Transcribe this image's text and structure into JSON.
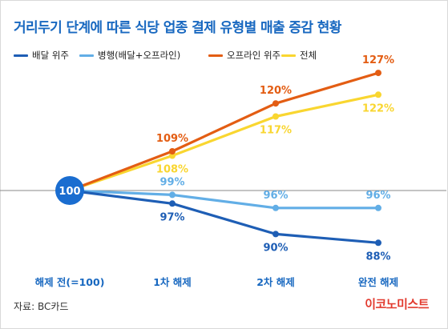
{
  "title": "거리두기 단계에 따른 식당 업종 결제 유형별 매출 증감 현황",
  "source": "자료: BC카드",
  "brand": "이코노미스트",
  "colors": {
    "title": "#1868c0",
    "baseline_marker": "#1a6dd0"
  },
  "chart_data": {
    "type": "line",
    "categories": [
      "해제 전(=100)",
      "1차 해제",
      "2차 해제",
      "완전 해제"
    ],
    "baseline_label": "100",
    "ylim": [
      80,
      130
    ],
    "grid": false,
    "legend_position": "top-left",
    "series": [
      {
        "name": "배달 위주",
        "color": "#1e5eb5",
        "values": [
          100,
          97,
          90,
          88
        ],
        "labels": [
          "",
          "97%",
          "90%",
          "88%"
        ],
        "label_side": "below"
      },
      {
        "name": "병행(배달+오프라인)",
        "color": "#62aee6",
        "values": [
          100,
          99,
          96,
          96
        ],
        "labels": [
          "",
          "99%",
          "96%",
          "96%"
        ],
        "label_side": "above"
      },
      {
        "name": "오프라인 위주",
        "color": "#e35d13",
        "values": [
          100,
          109,
          120,
          127
        ],
        "labels": [
          "",
          "109%",
          "120%",
          "127%"
        ],
        "label_side": "above"
      },
      {
        "name": "전체",
        "color": "#f9d630",
        "values": [
          100,
          108,
          117,
          122
        ],
        "labels": [
          "",
          "108%",
          "117%",
          "122%"
        ],
        "label_side": "below"
      }
    ]
  }
}
